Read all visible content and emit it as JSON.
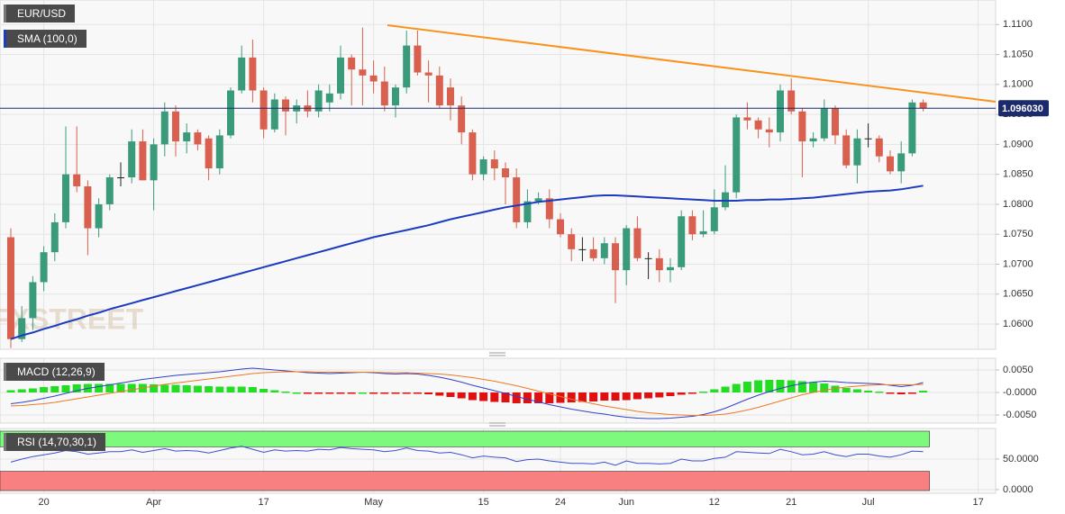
{
  "chart_data": [
    {
      "type": "candlestick",
      "title": "EUR/USD",
      "watermark": "FXSTREET",
      "categories": [
        null,
        null,
        null,
        "20",
        null,
        null,
        null,
        null,
        null,
        null,
        null,
        null,
        null,
        "Apr",
        null,
        null,
        null,
        null,
        null,
        null,
        null,
        null,
        null,
        "17",
        null,
        null,
        null,
        null,
        null,
        null,
        null,
        null,
        null,
        "May",
        null,
        null,
        null,
        null,
        null,
        null,
        null,
        null,
        null,
        "15",
        null,
        null,
        null,
        null,
        null,
        null,
        "24",
        null,
        null,
        null,
        null,
        null,
        "Jun",
        null,
        null,
        null,
        null,
        null,
        null,
        null,
        "12",
        null,
        null,
        null,
        null,
        null,
        null,
        "21",
        null,
        null,
        null,
        null,
        null,
        null,
        "Jul",
        null,
        null,
        null,
        null,
        null,
        null,
        null,
        null,
        null,
        "17",
        null
      ],
      "open": [
        1.0745,
        1.0575,
        1.061,
        1.067,
        1.072,
        1.077,
        1.085,
        1.083,
        1.076,
        1.08,
        1.0845,
        1.0845,
        1.0905,
        1.084,
        1.09,
        1.0955,
        1.0905,
        1.092,
        1.091,
        1.086,
        1.0915,
        1.099,
        1.1045,
        1.099,
        1.0925,
        1.0975,
        1.0955,
        1.0965,
        1.0955,
        1.097,
        1.0985,
        1.1045,
        1.1025,
        1.1015,
        1.1005,
        1.0965,
        1.0995,
        1.1065,
        1.102,
        1.1015,
        1.0995,
        1.0965,
        1.092,
        1.085,
        1.0875,
        1.086,
        1.0845,
        1.077,
        1.0805,
        1.081,
        1.0775,
        1.075,
        1.0725,
        1.0725,
        1.071,
        1.0735,
        1.069,
        1.076,
        1.071,
        1.071,
        1.069,
        1.0695,
        1.078,
        1.075,
        1.0755,
        1.0795,
        1.082,
        1.0945,
        1.094,
        1.0925,
        1.092,
        1.099,
        1.0955,
        1.0905,
        1.091,
        1.096,
        1.0915,
        1.0865,
        1.091,
        1.091,
        1.088,
        1.0855,
        1.0885,
        1.097,
        null,
        null,
        null,
        null,
        null,
        null
      ],
      "high": [
        1.076,
        1.063,
        1.068,
        1.073,
        1.0785,
        1.093,
        1.093,
        1.084,
        1.081,
        1.085,
        1.087,
        1.0925,
        1.0925,
        1.091,
        1.097,
        1.0965,
        1.0935,
        1.0925,
        1.0915,
        1.0925,
        1.0995,
        1.1065,
        1.1075,
        1.0995,
        1.0985,
        1.098,
        1.0975,
        1.099,
        1.1,
        1.1,
        1.1065,
        1.105,
        1.1095,
        1.104,
        1.103,
        1.1,
        1.109,
        1.109,
        1.104,
        1.103,
        1.101,
        1.098,
        1.0925,
        1.088,
        1.089,
        1.087,
        1.086,
        1.0825,
        1.082,
        1.0825,
        1.0785,
        1.076,
        1.0745,
        1.0745,
        1.0745,
        1.0745,
        1.0765,
        1.078,
        1.072,
        1.0725,
        1.071,
        1.079,
        1.079,
        1.079,
        1.0825,
        1.0865,
        1.095,
        1.097,
        1.0945,
        1.0945,
        1.1,
        1.101,
        1.096,
        1.092,
        1.0975,
        1.0965,
        1.0925,
        1.0925,
        1.0935,
        1.0915,
        1.089,
        1.0905,
        1.0975,
        1.0975,
        null,
        null,
        null,
        null,
        null,
        null
      ],
      "low": [
        1.056,
        1.057,
        1.059,
        1.0655,
        1.0705,
        1.076,
        1.082,
        1.0715,
        1.0745,
        1.079,
        1.083,
        1.0835,
        1.084,
        1.079,
        1.088,
        1.088,
        1.0885,
        1.089,
        1.084,
        1.085,
        1.091,
        1.0985,
        1.097,
        1.091,
        1.092,
        1.0915,
        1.0935,
        1.0945,
        1.0945,
        1.0955,
        1.0975,
        1.0965,
        1.0965,
        1.0985,
        1.0955,
        1.0945,
        1.0985,
        1.1015,
        1.097,
        1.096,
        1.094,
        1.09,
        1.084,
        1.084,
        1.084,
        1.08,
        1.076,
        1.076,
        1.08,
        1.076,
        1.0745,
        1.0705,
        1.0705,
        1.0705,
        1.07,
        1.0635,
        1.0665,
        1.0705,
        1.0675,
        1.067,
        1.067,
        1.069,
        1.074,
        1.0745,
        1.075,
        1.079,
        1.081,
        1.0925,
        1.091,
        1.0895,
        1.0905,
        1.095,
        1.0845,
        1.0895,
        1.0905,
        1.09,
        1.086,
        1.0835,
        1.0895,
        1.087,
        1.085,
        1.0835,
        1.088,
        1.0955,
        null,
        null,
        null,
        null,
        null,
        null
      ],
      "close": [
        1.0575,
        1.061,
        1.067,
        1.072,
        1.077,
        1.085,
        1.083,
        1.076,
        1.08,
        1.0845,
        1.0845,
        1.0905,
        1.084,
        1.09,
        1.0955,
        1.0905,
        1.092,
        1.09,
        1.086,
        1.0915,
        1.099,
        1.1045,
        1.099,
        1.0925,
        1.0975,
        1.0955,
        1.0965,
        1.0955,
        1.099,
        1.0985,
        1.1045,
        1.1025,
        1.1015,
        1.1005,
        1.0965,
        1.0995,
        1.1065,
        1.102,
        1.1015,
        1.0965,
        1.0965,
        1.092,
        1.085,
        1.0875,
        1.086,
        1.0845,
        1.077,
        1.0805,
        1.081,
        1.0775,
        1.075,
        1.0725,
        1.0725,
        1.071,
        1.0735,
        1.069,
        1.076,
        1.071,
        1.071,
        1.069,
        1.0695,
        1.078,
        1.075,
        1.0755,
        1.0795,
        1.082,
        1.0945,
        1.094,
        1.0925,
        1.092,
        1.099,
        1.0955,
        1.0905,
        1.091,
        1.096,
        1.0915,
        1.0865,
        1.091,
        1.091,
        1.088,
        1.0855,
        1.0885,
        1.097,
        1.096,
        null,
        null,
        null,
        null,
        null,
        null
      ],
      "up_color": "#3a9b7b",
      "down_color": "#d9604e",
      "flat_color": "#222222",
      "series": [
        {
          "name": "SMA (100,0)",
          "color": "#1b3bc0",
          "values": [
            1.0575,
            1.0581,
            1.0586,
            1.0592,
            1.0597,
            1.0603,
            1.0608,
            1.0614,
            1.0619,
            1.0625,
            1.063,
            1.0635,
            1.064,
            1.0645,
            1.065,
            1.0655,
            1.066,
            1.0665,
            1.067,
            1.0675,
            1.068,
            1.0685,
            1.069,
            1.0695,
            1.07,
            1.0705,
            1.071,
            1.0715,
            1.072,
            1.0725,
            1.073,
            1.0735,
            1.074,
            1.0745,
            1.0749,
            1.0753,
            1.0757,
            1.0761,
            1.0765,
            1.077,
            1.0775,
            1.0779,
            1.0783,
            1.0787,
            1.0791,
            1.0795,
            1.0798,
            1.0801,
            1.0804,
            1.0806,
            1.0808,
            1.081,
            1.0812,
            1.0814,
            1.0815,
            1.0815,
            1.0814,
            1.0813,
            1.0812,
            1.0811,
            1.081,
            1.0809,
            1.0808,
            1.0807,
            1.0806,
            1.0806,
            1.0806,
            1.0807,
            1.0807,
            1.0808,
            1.0808,
            1.0809,
            1.081,
            1.0811,
            1.0813,
            1.0815,
            1.0817,
            1.0819,
            1.0821,
            1.0822,
            1.0823,
            1.0825,
            1.0828,
            1.0831,
            null,
            null,
            null,
            null,
            null,
            null
          ]
        }
      ],
      "last_price": {
        "value": 1.09603,
        "label": "1.096030"
      },
      "ylim": [
        1.0558,
        1.1141
      ],
      "yticks": [
        {
          "value": 1.06,
          "label": "1.0600"
        },
        {
          "value": 1.065,
          "label": "1.0650"
        },
        {
          "value": 1.07,
          "label": "1.0700"
        },
        {
          "value": 1.075,
          "label": "1.0750"
        },
        {
          "value": 1.08,
          "label": "1.0800"
        },
        {
          "value": 1.085,
          "label": "1.0850"
        },
        {
          "value": 1.09,
          "label": "1.0900"
        },
        {
          "value": 1.095,
          "label": "1.0950"
        },
        {
          "value": 1.1,
          "label": "1.1000"
        },
        {
          "value": 1.105,
          "label": "1.1050"
        },
        {
          "value": 1.11,
          "label": "1.1100"
        }
      ],
      "grid": true
    },
    {
      "type": "macd",
      "title": "MACD (12,26,9)",
      "histogram": {
        "up_color": "#22dd22",
        "down_color": "#e01010",
        "values": [
          0.0005,
          0.0007,
          0.0009,
          0.0012,
          0.0014,
          0.0016,
          0.0018,
          0.0019,
          0.0019,
          0.0019,
          0.0019,
          0.0019,
          0.0019,
          0.0018,
          0.0017,
          0.0017,
          0.0016,
          0.0015,
          0.0014,
          0.0013,
          0.0013,
          0.0013,
          0.0012,
          0.0008,
          0.0005,
          0.0002,
          0.0,
          -0.0002,
          -0.0002,
          -0.0003,
          -0.0002,
          -0.0001,
          0.0,
          -0.0001,
          -0.0002,
          -0.0003,
          -0.0002,
          -0.0002,
          -0.0004,
          -0.0007,
          -0.001,
          -0.0013,
          -0.0017,
          -0.0019,
          -0.0021,
          -0.0022,
          -0.0024,
          -0.0024,
          -0.0024,
          -0.0024,
          -0.0023,
          -0.0022,
          -0.0021,
          -0.002,
          -0.0018,
          -0.0018,
          -0.0017,
          -0.0015,
          -0.0013,
          -0.0011,
          -0.0008,
          -0.0005,
          -0.0002,
          0.0002,
          0.0007,
          0.0013,
          0.0019,
          0.0024,
          0.0027,
          0.0028,
          0.0028,
          0.0027,
          0.0025,
          0.0023,
          0.002,
          0.0015,
          0.001,
          0.0007,
          0.0004,
          0.0002,
          -0.0001,
          -0.0004,
          -0.0001,
          0.0004,
          null,
          null,
          null,
          null,
          null,
          null
        ]
      },
      "series": [
        {
          "color": "#3040c8",
          "values": [
            -0.0025,
            -0.0022,
            -0.0018,
            -0.0013,
            -0.0008,
            -0.0002,
            0.0004,
            0.0009,
            0.0013,
            0.0017,
            0.0021,
            0.0025,
            0.0029,
            0.0032,
            0.0035,
            0.0038,
            0.004,
            0.0042,
            0.0044,
            0.0046,
            0.0049,
            0.0052,
            0.0054,
            0.0052,
            0.005,
            0.0048,
            0.0046,
            0.0044,
            0.0043,
            0.0042,
            0.0043,
            0.0044,
            0.0045,
            0.0044,
            0.0042,
            0.0041,
            0.0042,
            0.0041,
            0.0038,
            0.0034,
            0.0029,
            0.0023,
            0.0016,
            0.001,
            0.0004,
            -0.0002,
            -0.0009,
            -0.0015,
            -0.0021,
            -0.0027,
            -0.0032,
            -0.0037,
            -0.0041,
            -0.0045,
            -0.0048,
            -0.0052,
            -0.0055,
            -0.0057,
            -0.0058,
            -0.0058,
            -0.0057,
            -0.0055,
            -0.0053,
            -0.0049,
            -0.0043,
            -0.0035,
            -0.0025,
            -0.0015,
            -0.0006,
            0.0002,
            0.0009,
            0.0015,
            0.002,
            0.0023,
            0.0025,
            0.0024,
            0.0022,
            0.0021,
            0.002,
            0.0019,
            0.0016,
            0.0013,
            0.0016,
            0.0022,
            null,
            null,
            null,
            null,
            null,
            null
          ]
        },
        {
          "color": "#f07820",
          "values": [
            -0.003,
            -0.0029,
            -0.0027,
            -0.0025,
            -0.0022,
            -0.0018,
            -0.0014,
            -0.001,
            -0.0006,
            -0.0002,
            0.0002,
            0.0006,
            0.001,
            0.0014,
            0.0018,
            0.0021,
            0.0024,
            0.0027,
            0.003,
            0.0033,
            0.0036,
            0.0039,
            0.0042,
            0.0044,
            0.0045,
            0.0046,
            0.0046,
            0.0046,
            0.0045,
            0.0045,
            0.0045,
            0.0045,
            0.0045,
            0.0045,
            0.0044,
            0.0044,
            0.0044,
            0.0043,
            0.0042,
            0.0041,
            0.0039,
            0.0036,
            0.0033,
            0.0029,
            0.0025,
            0.002,
            0.0015,
            0.0009,
            0.0003,
            -0.0003,
            -0.0009,
            -0.0015,
            -0.002,
            -0.0025,
            -0.003,
            -0.0034,
            -0.0038,
            -0.0042,
            -0.0045,
            -0.0047,
            -0.0049,
            -0.005,
            -0.0051,
            -0.0051,
            -0.005,
            -0.0048,
            -0.0044,
            -0.0039,
            -0.0033,
            -0.0026,
            -0.0019,
            -0.0012,
            -0.0005,
            0.0,
            0.0005,
            0.0009,
            0.0012,
            0.0014,
            0.0016,
            0.0017,
            0.0017,
            0.0017,
            0.0017,
            0.0018,
            null,
            null,
            null,
            null,
            null,
            null
          ]
        }
      ],
      "ylim": [
        -0.0068,
        0.0076
      ],
      "yticks": [
        {
          "value": -0.005,
          "label": "-0.0050"
        },
        {
          "value": 0,
          "label": "-0.0000"
        },
        {
          "value": 0.005,
          "label": "0.0050"
        }
      ],
      "grid": true
    },
    {
      "type": "rsi",
      "title": "RSI (14,70,30,1)",
      "color": "#3b4fd0",
      "overbought": 70,
      "oversold": 30,
      "overbought_color": "#7dfa7d",
      "oversold_color": "#f88080",
      "values": [
        45,
        50,
        54,
        57,
        60,
        64,
        62,
        58,
        60,
        62,
        62,
        65,
        61,
        64,
        67,
        63,
        64,
        63,
        60,
        64,
        68,
        71,
        66,
        61,
        65,
        63,
        64,
        63,
        66,
        65,
        69,
        67,
        66,
        65,
        62,
        64,
        68,
        64,
        63,
        60,
        61,
        57,
        52,
        55,
        53,
        52,
        46,
        49,
        50,
        47,
        45,
        43,
        43,
        42,
        45,
        40,
        47,
        43,
        43,
        42,
        43,
        50,
        47,
        47,
        51,
        53,
        62,
        61,
        60,
        59,
        66,
        62,
        57,
        58,
        62,
        57,
        54,
        58,
        58,
        55,
        53,
        57,
        63,
        62,
        null,
        null,
        null,
        null,
        null,
        null
      ],
      "ylim": [
        -6,
        100
      ],
      "yticks": [
        {
          "value": 0,
          "label": "0.0000"
        },
        {
          "value": 50,
          "label": "50.0000"
        }
      ],
      "grid": true
    }
  ]
}
